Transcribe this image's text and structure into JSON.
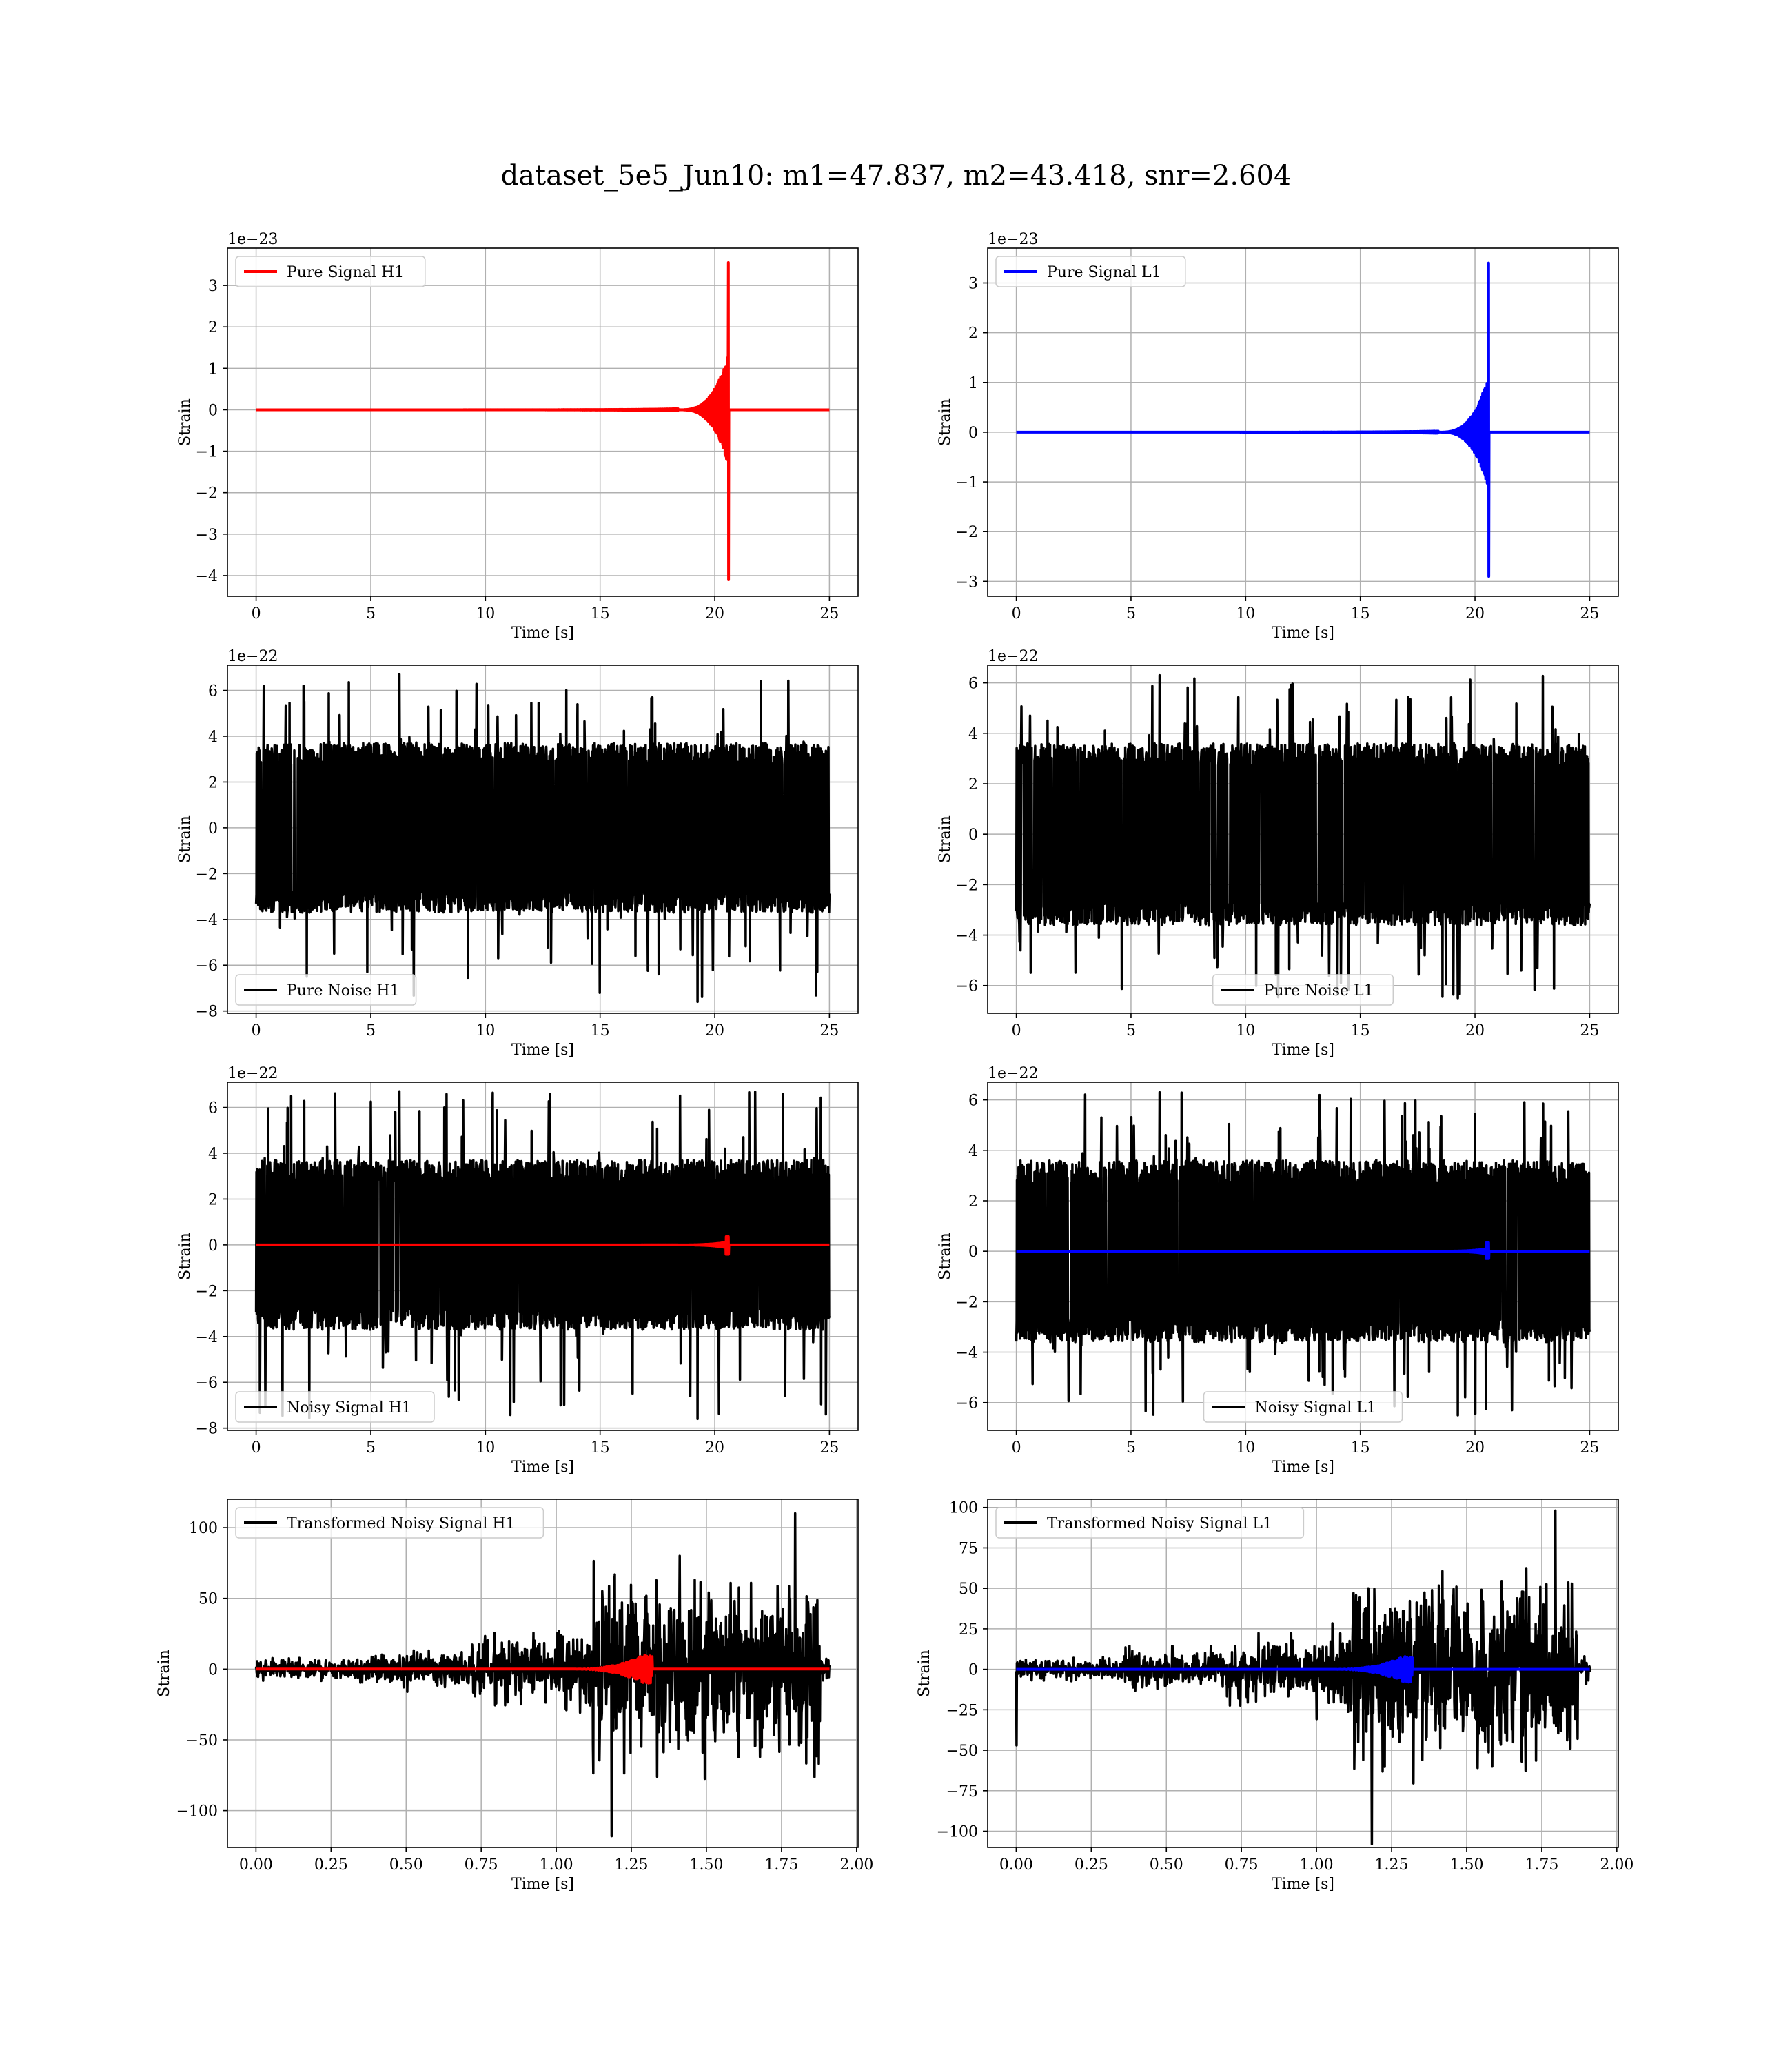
{
  "figure": {
    "title": "dataset_5e5_Jun10: m1=47.837, m2=43.418, snr=2.604",
    "colors": {
      "h1_signal": "#ff0000",
      "l1_signal": "#0000ff",
      "noise": "#000000",
      "grid": "#b0b0b0"
    }
  },
  "chart_data": [
    {
      "type": "line",
      "detector": "H1",
      "row": 1,
      "col": 1,
      "xlabel": "Time [s]",
      "ylabel": "Strain",
      "offset_text": "1e−23",
      "xlim": [
        -1.25,
        26.25
      ],
      "ylim": [
        -4.5,
        3.9
      ],
      "xticks": [
        0,
        5,
        10,
        15,
        20,
        25
      ],
      "yticks": [
        -4,
        -3,
        -2,
        -1,
        0,
        1,
        2,
        3
      ],
      "grid": true,
      "legend_loc": "upper left",
      "series": [
        {
          "name": "Pure Signal H1",
          "color": "#ff0000",
          "kind": "chirp",
          "duration": 25,
          "t_merger": 20.6,
          "peak_pos": 3.55,
          "peak_neg": -4.1,
          "pre_env": 1.35,
          "amp_scale": 1
        }
      ]
    },
    {
      "type": "line",
      "detector": "L1",
      "row": 1,
      "col": 2,
      "xlabel": "Time [s]",
      "ylabel": "Strain",
      "offset_text": "1e−23",
      "xlim": [
        -1.25,
        26.25
      ],
      "ylim": [
        -3.3,
        3.7
      ],
      "xticks": [
        0,
        5,
        10,
        15,
        20,
        25
      ],
      "yticks": [
        -3,
        -2,
        -1,
        0,
        1,
        2,
        3
      ],
      "grid": true,
      "legend_loc": "upper left",
      "series": [
        {
          "name": "Pure Signal L1",
          "color": "#0000ff",
          "kind": "chirp",
          "duration": 25,
          "t_merger": 20.6,
          "peak_pos": 3.4,
          "peak_neg": -2.9,
          "pre_env": 1.15,
          "amp_scale": 1
        }
      ]
    },
    {
      "type": "line",
      "detector": "H1",
      "row": 2,
      "col": 1,
      "xlabel": "Time [s]",
      "ylabel": "Strain",
      "offset_text": "1e−22",
      "xlim": [
        -1.25,
        26.25
      ],
      "ylim": [
        -8.1,
        7.1
      ],
      "xticks": [
        0,
        5,
        10,
        15,
        20,
        25
      ],
      "yticks": [
        -8,
        -6,
        -4,
        -2,
        0,
        2,
        4,
        6
      ],
      "grid": true,
      "legend_loc": "lower left",
      "series": [
        {
          "name": "Pure Noise H1",
          "color": "#000000",
          "kind": "noise",
          "duration": 25,
          "band": 3.7,
          "max": 6.7,
          "min": -7.6
        }
      ]
    },
    {
      "type": "line",
      "detector": "L1",
      "row": 2,
      "col": 2,
      "xlabel": "Time [s]",
      "ylabel": "Strain",
      "offset_text": "1e−22",
      "xlim": [
        -1.25,
        26.25
      ],
      "ylim": [
        -7.1,
        6.7
      ],
      "xticks": [
        0,
        5,
        10,
        15,
        20,
        25
      ],
      "yticks": [
        -6,
        -4,
        -2,
        0,
        2,
        4,
        6
      ],
      "grid": true,
      "legend_loc": "lower center",
      "series": [
        {
          "name": "Pure Noise L1",
          "color": "#000000",
          "kind": "noise",
          "duration": 25,
          "band": 3.6,
          "max": 6.3,
          "min": -6.5
        }
      ]
    },
    {
      "type": "line",
      "detector": "H1",
      "row": 3,
      "col": 1,
      "xlabel": "Time [s]",
      "ylabel": "Strain",
      "offset_text": "1e−22",
      "xlim": [
        -1.25,
        26.25
      ],
      "ylim": [
        -8.1,
        7.1
      ],
      "xticks": [
        0,
        5,
        10,
        15,
        20,
        25
      ],
      "yticks": [
        -8,
        -6,
        -4,
        -2,
        0,
        2,
        4,
        6
      ],
      "grid": true,
      "legend_loc": "lower left",
      "series": [
        {
          "name": "Noisy Signal H1",
          "color": "#000000",
          "kind": "noise",
          "duration": 25,
          "band": 3.7,
          "max": 6.7,
          "min": -7.6
        },
        {
          "color": "#ff0000",
          "kind": "chirp",
          "duration": 25,
          "t_merger": 20.6,
          "peak_pos": 0.36,
          "peak_neg": -0.41,
          "pre_env": 0.14,
          "amp_scale": 1
        }
      ]
    },
    {
      "type": "line",
      "detector": "L1",
      "row": 3,
      "col": 2,
      "xlabel": "Time [s]",
      "ylabel": "Strain",
      "offset_text": "1e−22",
      "xlim": [
        -1.25,
        26.25
      ],
      "ylim": [
        -7.1,
        6.7
      ],
      "xticks": [
        0,
        5,
        10,
        15,
        20,
        25
      ],
      "yticks": [
        -6,
        -4,
        -2,
        0,
        2,
        4,
        6
      ],
      "grid": true,
      "legend_loc": "lower center",
      "series": [
        {
          "name": "Noisy Signal L1",
          "color": "#000000",
          "kind": "noise",
          "duration": 25,
          "band": 3.6,
          "max": 6.3,
          "min": -6.5
        },
        {
          "color": "#0000ff",
          "kind": "chirp",
          "duration": 25,
          "t_merger": 20.6,
          "peak_pos": 0.34,
          "peak_neg": -0.29,
          "pre_env": 0.12,
          "amp_scale": 1
        }
      ]
    },
    {
      "type": "line",
      "detector": "H1",
      "row": 4,
      "col": 1,
      "xlabel": "Time [s]",
      "ylabel": "Strain",
      "offset_text": "",
      "xlim": [
        -0.095,
        2.005
      ],
      "ylim": [
        -126,
        120
      ],
      "xticks": [
        0.0,
        0.25,
        0.5,
        0.75,
        1.0,
        1.25,
        1.5,
        1.75,
        2.0
      ],
      "xtick_labels": [
        "0.00",
        "0.25",
        "0.50",
        "0.75",
        "1.00",
        "1.25",
        "1.50",
        "1.75",
        "2.00"
      ],
      "yticks": [
        -100,
        -50,
        0,
        50,
        100
      ],
      "grid": true,
      "legend_loc": "upper left",
      "series": [
        {
          "name": "Transformed Noisy Signal H1",
          "color": "#000000",
          "kind": "whitened",
          "duration": 1.91,
          "segments": [
            [
              0,
              0.35,
              6
            ],
            [
              0.35,
              0.7,
              10
            ],
            [
              0.7,
              1.0,
              16
            ],
            [
              1.0,
              1.12,
              24
            ],
            [
              1.12,
              1.88,
              50
            ],
            [
              1.88,
              1.91,
              8
            ]
          ],
          "max": 110,
          "min": -118
        },
        {
          "color": "#ff0000",
          "kind": "wavepacket",
          "duration": 1.91,
          "t_center": 1.29,
          "amp": 10,
          "start": 1.05
        }
      ]
    },
    {
      "type": "line",
      "detector": "L1",
      "row": 4,
      "col": 2,
      "xlabel": "Time [s]",
      "ylabel": "Strain",
      "offset_text": "",
      "xlim": [
        -0.095,
        2.005
      ],
      "ylim": [
        -110,
        105
      ],
      "xticks": [
        0.0,
        0.25,
        0.5,
        0.75,
        1.0,
        1.25,
        1.5,
        1.75,
        2.0
      ],
      "xtick_labels": [
        "0.00",
        "0.25",
        "0.50",
        "0.75",
        "1.00",
        "1.25",
        "1.50",
        "1.75",
        "2.00"
      ],
      "yticks": [
        -100,
        -75,
        -50,
        -25,
        0,
        25,
        50,
        75,
        100
      ],
      "grid": true,
      "legend_loc": "upper left",
      "series": [
        {
          "name": "Transformed Noisy Signal L1",
          "color": "#000000",
          "kind": "whitened",
          "duration": 1.91,
          "segments": [
            [
              0,
              0.36,
              5
            ],
            [
              0.36,
              0.7,
              9
            ],
            [
              0.7,
              1.0,
              14
            ],
            [
              1.0,
              1.12,
              22
            ],
            [
              1.12,
              1.87,
              46
            ],
            [
              1.87,
              1.91,
              6
            ]
          ],
          "max": 98,
          "min": -108,
          "spike_start": -47
        },
        {
          "color": "#0000ff",
          "kind": "wavepacket",
          "duration": 1.91,
          "t_center": 1.29,
          "amp": 8,
          "start": 1.05
        }
      ]
    }
  ]
}
